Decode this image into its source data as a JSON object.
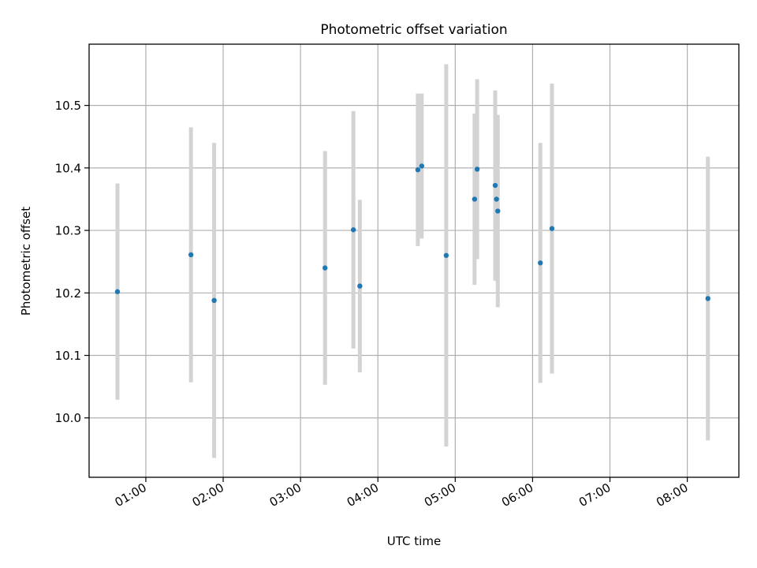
{
  "chart_data": {
    "type": "scatter",
    "title": "Photometric offset variation",
    "xlabel": "UTC time",
    "ylabel": "Photometric offset",
    "x_ticks": [
      "01:00",
      "02:00",
      "03:00",
      "04:00",
      "05:00",
      "06:00",
      "07:00",
      "08:00"
    ],
    "y_ticks": [
      "10.0",
      "10.1",
      "10.2",
      "10.3",
      "10.4",
      "10.5"
    ],
    "xlim": [
      "00:16",
      "08:40"
    ],
    "ylim": [
      9.905,
      10.598
    ],
    "grid": true,
    "colors": {
      "marker": "#1f77b4",
      "errorbar": "#d3d3d3"
    },
    "points": [
      {
        "x": "00:38",
        "y": 10.202,
        "err": 0.173
      },
      {
        "x": "01:35",
        "y": 10.261,
        "err": 0.204
      },
      {
        "x": "01:53",
        "y": 10.188,
        "err": 0.252
      },
      {
        "x": "03:19",
        "y": 10.24,
        "err": 0.187
      },
      {
        "x": "03:41",
        "y": 10.301,
        "err": 0.19
      },
      {
        "x": "03:46",
        "y": 10.211,
        "err": 0.138
      },
      {
        "x": "04:31",
        "y": 10.397,
        "err": 0.122
      },
      {
        "x": "04:34",
        "y": 10.403,
        "err": 0.116
      },
      {
        "x": "04:53",
        "y": 10.26,
        "err": 0.306
      },
      {
        "x": "05:15",
        "y": 10.35,
        "err": 0.137
      },
      {
        "x": "05:17",
        "y": 10.398,
        "err": 0.144
      },
      {
        "x": "05:31",
        "y": 10.372,
        "err": 0.152
      },
      {
        "x": "05:32",
        "y": 10.35,
        "err": 0.131
      },
      {
        "x": "05:33",
        "y": 10.331,
        "err": 0.154
      },
      {
        "x": "06:06",
        "y": 10.248,
        "err": 0.192
      },
      {
        "x": "06:15",
        "y": 10.303,
        "err": 0.232
      },
      {
        "x": "08:16",
        "y": 10.191,
        "err": 0.227
      }
    ]
  }
}
